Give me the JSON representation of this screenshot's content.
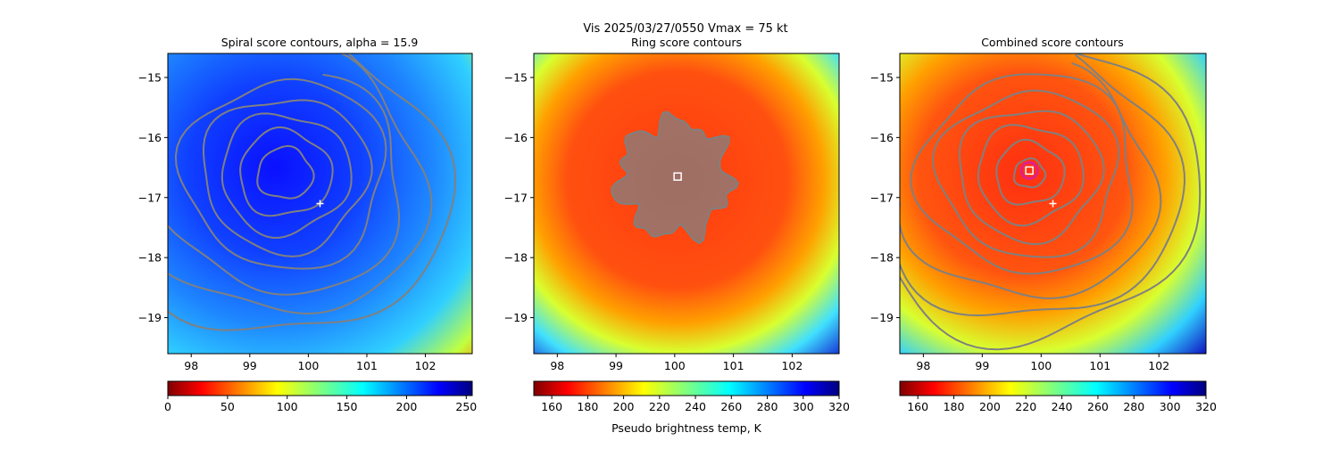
{
  "suptitle": "Vis  2025/03/27/0550    Vmax = 75 kt",
  "colorbar_label": "Pseudo brightness temp, K",
  "colors": {
    "contour": "#808080",
    "marker": "#ffffff",
    "center_ring": "#e0208c",
    "cold_core": "#1010ff",
    "warm_core": "#ff4010"
  },
  "chart_data": [
    {
      "type": "heatmap",
      "title": "Spiral score contours, alpha = 15.9",
      "xlim": [
        97.6,
        102.8
      ],
      "ylim": [
        -19.6,
        -14.6
      ],
      "xticks": [
        98,
        99,
        100,
        101,
        102
      ],
      "yticks": [
        -15,
        -16,
        -17,
        -18,
        -19
      ],
      "xtick_labels": [
        "98",
        "99",
        "100",
        "101",
        "102"
      ],
      "ytick_labels": [
        "−15",
        "−16",
        "−17",
        "−18",
        "−19"
      ],
      "colorbar": {
        "colormap": "jet_r",
        "range": [
          0,
          255
        ],
        "ticks": [
          0,
          50,
          100,
          150,
          200,
          250
        ],
        "tick_labels": [
          "0",
          "50",
          "100",
          "150",
          "200",
          "250"
        ]
      },
      "contour_center": [
        99.6,
        -16.6
      ],
      "contour_radii_deg": [
        0.45,
        0.75,
        1.05,
        1.35,
        1.65,
        1.95,
        2.3,
        2.65
      ],
      "eye_marker": {
        "symbol": "+",
        "lon": 100.2,
        "lat": -17.1
      }
    },
    {
      "type": "heatmap",
      "title": "Ring score contours",
      "xlim": [
        97.6,
        102.8
      ],
      "ylim": [
        -19.6,
        -14.6
      ],
      "xticks": [
        98,
        99,
        100,
        101,
        102
      ],
      "yticks": [
        -15,
        -16,
        -17,
        -18,
        -19
      ],
      "xtick_labels": [
        "98",
        "99",
        "100",
        "101",
        "102"
      ],
      "ytick_labels": [
        "−15",
        "−16",
        "−17",
        "−18",
        "−19"
      ],
      "colorbar": {
        "colormap": "jet_r",
        "range": [
          150,
          320
        ],
        "ticks": [
          160,
          180,
          200,
          220,
          240,
          260,
          280,
          300,
          320
        ],
        "tick_labels": [
          "160",
          "180",
          "200",
          "220",
          "240",
          "260",
          "280",
          "300",
          "320"
        ]
      },
      "ring_center": [
        100.05,
        -16.65
      ],
      "center_marker": {
        "symbol": "square",
        "lon": 100.05,
        "lat": -16.65
      }
    },
    {
      "type": "heatmap",
      "title": "Combined score contours",
      "xlim": [
        97.6,
        102.8
      ],
      "ylim": [
        -19.6,
        -14.6
      ],
      "xticks": [
        98,
        99,
        100,
        101,
        102
      ],
      "yticks": [
        -15,
        -16,
        -17,
        -18,
        -19
      ],
      "xtick_labels": [
        "98",
        "99",
        "100",
        "101",
        "102"
      ],
      "ytick_labels": [
        "−15",
        "−16",
        "−17",
        "−18",
        "−19"
      ],
      "colorbar": {
        "colormap": "jet_r",
        "range": [
          150,
          320
        ],
        "ticks": [
          160,
          180,
          200,
          220,
          240,
          260,
          280,
          300,
          320
        ],
        "tick_labels": [
          "160",
          "180",
          "200",
          "220",
          "240",
          "260",
          "280",
          "300",
          "320"
        ]
      },
      "contour_center": [
        99.8,
        -16.6
      ],
      "contour_radii_deg": [
        0.25,
        0.55,
        0.85,
        1.15,
        1.45,
        1.75,
        2.05,
        2.4,
        2.7
      ],
      "eye_marker": {
        "symbol": "+",
        "lon": 100.2,
        "lat": -17.1
      },
      "center_marker": {
        "symbol": "square",
        "lon": 99.8,
        "lat": -16.55
      },
      "center_ring": {
        "lon": 99.8,
        "lat": -16.55
      }
    }
  ]
}
